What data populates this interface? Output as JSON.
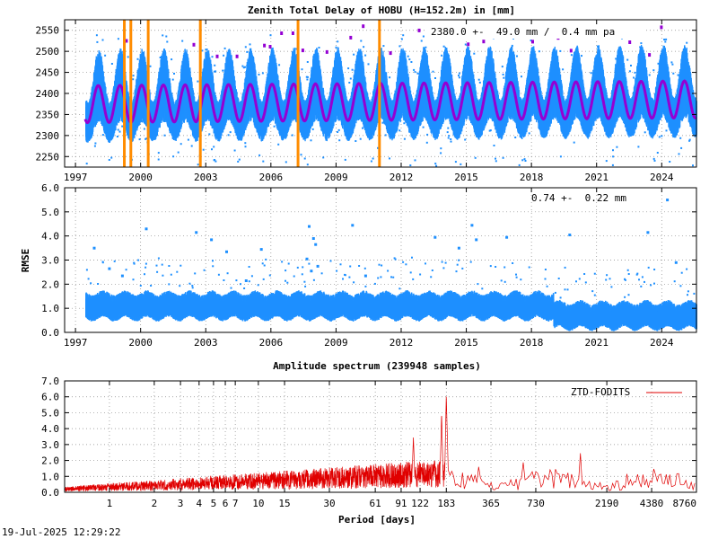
{
  "timestamp": "19-Jul-2025 12:29:22",
  "chart_data": [
    {
      "type": "scatter",
      "title": "Zenith Total Delay of HOBU (H=152.2m) in [mm]",
      "annotation": "2380.0 +-  49.0 mm /  0.4 mm pa",
      "xlim": [
        1996.5,
        2025.6
      ],
      "ylim": [
        2225,
        2575
      ],
      "x_ticks": [
        1997,
        2000,
        2003,
        2006,
        2009,
        2012,
        2015,
        2018,
        2021,
        2024
      ],
      "y_ticks": [
        2250,
        2300,
        2350,
        2400,
        2450,
        2500,
        2550
      ],
      "grid": true,
      "data_start": 1997.45,
      "mean": 2380.0,
      "seasonal_amplitude": 44,
      "scatter_band": 80,
      "trend_mm_per_year": 0.4,
      "event_lines": [
        1999.25,
        1999.55,
        2000.35,
        2002.75,
        2007.25,
        2011.0
      ],
      "colors": {
        "data": "#1e90ff",
        "model": "#9400d3",
        "outlier": "#9400d3",
        "event": "#ff8c00"
      }
    },
    {
      "type": "scatter",
      "ylabel": "RMSE",
      "annotation": "0.74 +-  0.22 mm",
      "xlim": [
        1996.5,
        2025.6
      ],
      "ylim": [
        0,
        6
      ],
      "x_ticks": [
        1997,
        2000,
        2003,
        2006,
        2009,
        2012,
        2015,
        2018,
        2021,
        2024
      ],
      "y_ticks": [
        0.0,
        1.0,
        2.0,
        3.0,
        4.0,
        5.0,
        6.0
      ],
      "grid": true,
      "data_start": 1997.45,
      "level_before_2019": 1.05,
      "level_after_2019": 0.65,
      "band": 0.5,
      "outliers": [
        {
          "x": 1997.8,
          "y": 3.55
        },
        {
          "x": 1998.5,
          "y": 2.7
        },
        {
          "x": 1999.1,
          "y": 2.4
        },
        {
          "x": 2000.2,
          "y": 4.35
        },
        {
          "x": 2002.5,
          "y": 4.2
        },
        {
          "x": 2003.2,
          "y": 3.9
        },
        {
          "x": 2005.5,
          "y": 3.5
        },
        {
          "x": 2007.7,
          "y": 4.45
        },
        {
          "x": 2007.9,
          "y": 3.95
        },
        {
          "x": 2008.0,
          "y": 3.7
        },
        {
          "x": 2007.6,
          "y": 3.1
        },
        {
          "x": 2008.1,
          "y": 2.8
        },
        {
          "x": 2007.8,
          "y": 2.6
        },
        {
          "x": 2009.7,
          "y": 4.5
        },
        {
          "x": 2013.5,
          "y": 4.0
        },
        {
          "x": 2015.2,
          "y": 4.5
        },
        {
          "x": 2016.8,
          "y": 4.0
        },
        {
          "x": 2015.4,
          "y": 3.9
        },
        {
          "x": 2019.7,
          "y": 4.1
        },
        {
          "x": 2023.3,
          "y": 4.2
        },
        {
          "x": 2024.2,
          "y": 5.55
        },
        {
          "x": 2024.6,
          "y": 2.95
        },
        {
          "x": 2003.9,
          "y": 3.4
        },
        {
          "x": 2014.6,
          "y": 3.55
        },
        {
          "x": 2010.3,
          "y": 2.4
        },
        {
          "x": 2004.8,
          "y": 2.2
        }
      ],
      "colors": {
        "data": "#1e90ff"
      }
    },
    {
      "type": "line",
      "title": "Amplitude spectrum (239948 samples)",
      "xlabel": "Period [days]",
      "x_scale": "log",
      "xlim": [
        0.5,
        8760
      ],
      "ylim": [
        0,
        7
      ],
      "x_ticks": [
        1,
        2,
        3,
        4,
        5,
        6,
        7,
        10,
        15,
        30,
        61,
        91,
        122,
        183,
        365,
        730,
        2190,
        4380,
        8760
      ],
      "y_ticks": [
        0.0,
        1.0,
        2.0,
        3.0,
        4.0,
        5.0,
        6.0,
        7.0
      ],
      "grid": true,
      "legend": "top-right",
      "series": [
        {
          "name": "ZTD-FODITS",
          "color": "#e00000",
          "peaks": [
            {
              "period": 183,
              "amplitude": 5.85
            },
            {
              "period": 170,
              "amplitude": 4.7
            },
            {
              "period": 110,
              "amplitude": 3.15
            },
            {
              "period": 1460,
              "amplitude": 2.35
            },
            {
              "period": 600,
              "amplitude": 1.75
            },
            {
              "period": 300,
              "amplitude": 1.6
            },
            {
              "period": 1000,
              "amplitude": 1.3
            },
            {
              "period": 3000,
              "amplitude": 1.0
            }
          ]
        }
      ]
    }
  ]
}
